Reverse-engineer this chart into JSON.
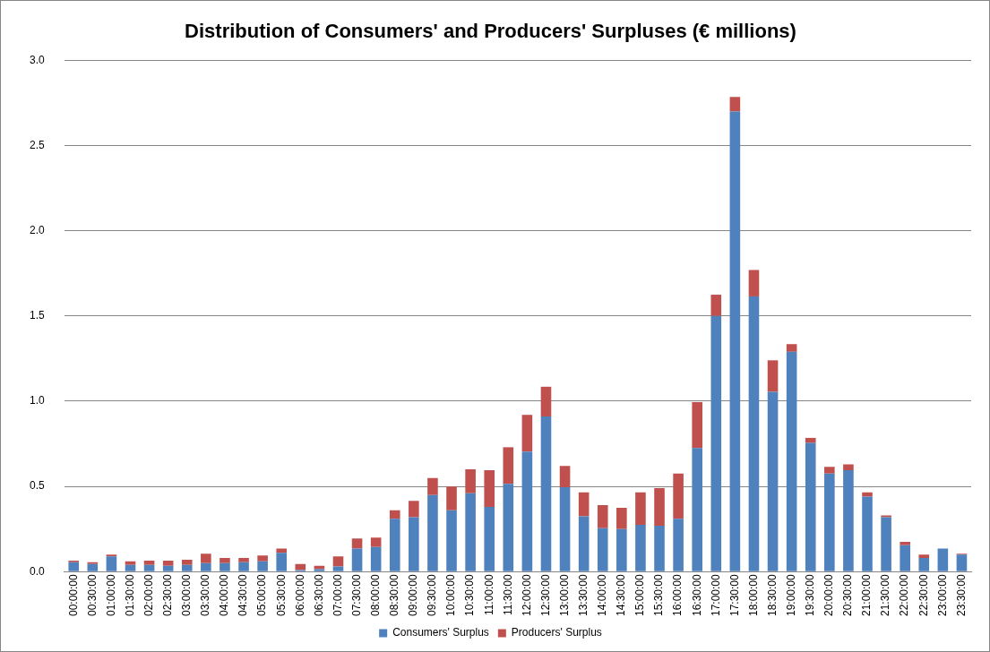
{
  "chart_data": {
    "type": "bar",
    "title": "Distribution of Consumers' and Producers' Surpluses (€ millions)",
    "categories": [
      "00:00:00",
      "00:30:00",
      "01:00:00",
      "01:30:00",
      "02:00:00",
      "02:30:00",
      "03:00:00",
      "03:30:00",
      "04:00:00",
      "04:30:00",
      "05:00:00",
      "05:30:00",
      "06:00:00",
      "06:30:00",
      "07:00:00",
      "07:30:00",
      "08:00:00",
      "08:30:00",
      "09:00:00",
      "09:30:00",
      "10:00:00",
      "10:30:00",
      "11:00:00",
      "11:30:00",
      "12:00:00",
      "12:30:00",
      "13:00:00",
      "13:30:00",
      "14:00:00",
      "14:30:00",
      "15:00:00",
      "15:30:00",
      "16:00:00",
      "16:30:00",
      "17:00:00",
      "17:30:00",
      "18:00:00",
      "18:30:00",
      "19:00:00",
      "19:30:00",
      "20:00:00",
      "20:30:00",
      "21:00:00",
      "21:30:00",
      "22:00:00",
      "22:30:00",
      "23:00:00",
      "23:30:00"
    ],
    "series": [
      {
        "name": "Consumers' Surplus",
        "color": "#4f81bd",
        "values": [
          0.055,
          0.045,
          0.09,
          0.04,
          0.04,
          0.035,
          0.04,
          0.05,
          0.05,
          0.055,
          0.06,
          0.11,
          0.01,
          0.015,
          0.03,
          0.135,
          0.145,
          0.31,
          0.32,
          0.45,
          0.36,
          0.46,
          0.38,
          0.515,
          0.705,
          0.91,
          0.495,
          0.325,
          0.255,
          0.25,
          0.275,
          0.27,
          0.31,
          0.725,
          1.5,
          2.7,
          1.615,
          1.055,
          1.29,
          0.755,
          0.575,
          0.595,
          0.44,
          0.32,
          0.155,
          0.08,
          0.135,
          0.1
        ]
      },
      {
        "name": "Producers' Surplus",
        "color": "#c0504d",
        "values": [
          0.01,
          0.01,
          0.01,
          0.02,
          0.025,
          0.03,
          0.03,
          0.055,
          0.03,
          0.025,
          0.035,
          0.025,
          0.035,
          0.02,
          0.06,
          0.06,
          0.055,
          0.05,
          0.095,
          0.1,
          0.14,
          0.14,
          0.215,
          0.215,
          0.215,
          0.175,
          0.125,
          0.14,
          0.135,
          0.125,
          0.19,
          0.22,
          0.265,
          0.27,
          0.125,
          0.085,
          0.155,
          0.185,
          0.045,
          0.03,
          0.04,
          0.035,
          0.025,
          0.01,
          0.02,
          0.02,
          null,
          0.005
        ]
      }
    ],
    "stacked": true,
    "ylim": [
      0,
      3
    ],
    "yticks": [
      {
        "value": 0,
        "label": "0.0"
      },
      {
        "value": 0.5,
        "label": "0.5"
      },
      {
        "value": 1,
        "label": "1.0"
      },
      {
        "value": 1.5,
        "label": "1.5"
      },
      {
        "value": 2,
        "label": "2.0"
      },
      {
        "value": 2.5,
        "label": "2.5"
      },
      {
        "value": 3,
        "label": "3.0"
      }
    ],
    "grid": "y",
    "legend": "bottom"
  }
}
